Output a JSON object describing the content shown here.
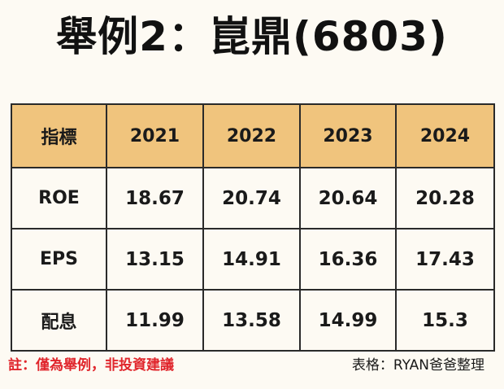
{
  "title": "舉例2：崑鼎(6803)",
  "table": {
    "headers": [
      "指標",
      "2021",
      "2022",
      "2023",
      "2024"
    ],
    "rows": [
      {
        "label": "ROE",
        "values": [
          "18.67",
          "20.74",
          "20.64",
          "20.28"
        ]
      },
      {
        "label": "EPS",
        "values": [
          "13.15",
          "14.91",
          "16.36",
          "17.43"
        ]
      },
      {
        "label": "配息",
        "values": [
          "11.99",
          "13.58",
          "14.99",
          "15.3"
        ]
      }
    ]
  },
  "footer": {
    "disclaimer": "註：僅為舉例，非投資建議",
    "source": "表格：RYAN爸爸整理"
  },
  "colors": {
    "header_bg": "#f0c47d",
    "page_bg": "#fdfaf3",
    "disclaimer": "#e0262c"
  }
}
